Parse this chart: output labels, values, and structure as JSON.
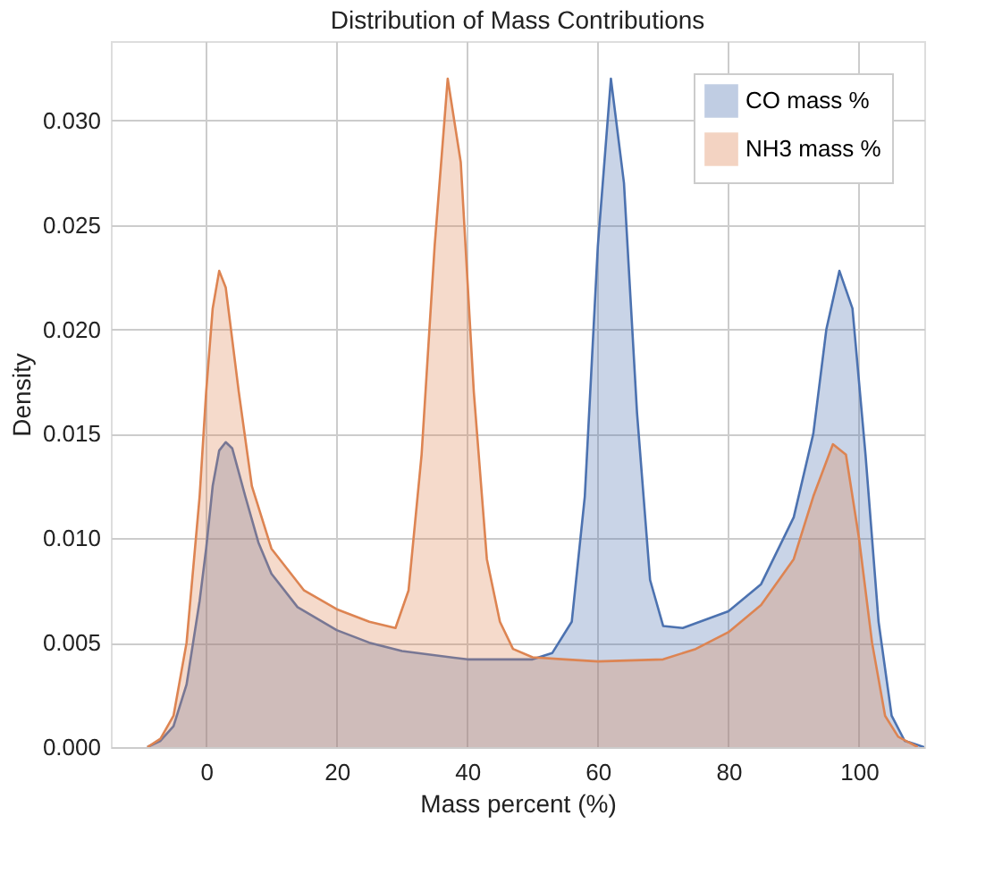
{
  "chart_data": {
    "type": "area",
    "title": "Distribution of Mass Contributions",
    "xlabel": "Mass percent (%)",
    "ylabel": "Density",
    "xlim": [
      -14.6,
      110
    ],
    "xticks": [
      0,
      20,
      40,
      60,
      80,
      100
    ],
    "ylim": [
      0,
      0.0338
    ],
    "yticks": [
      {
        "value": 0,
        "label": "0.000"
      },
      0.005,
      {
        "value": 0.01,
        "label": "0.010"
      },
      0.015,
      {
        "value": 0.02,
        "label": "0.020"
      },
      0.025,
      {
        "value": 0.03,
        "label": "0.030"
      }
    ],
    "grid": true,
    "legend": "top right",
    "series": [
      {
        "name": "CO mass %",
        "color": "#4c72b0",
        "x": [
          -9,
          -7,
          -5,
          -3,
          -1,
          0,
          1,
          2,
          3,
          4,
          6,
          8,
          10,
          14,
          20,
          25,
          30,
          40,
          50,
          53,
          56,
          58,
          60,
          62,
          64,
          66,
          68,
          70,
          73,
          80,
          85,
          90,
          93,
          95,
          97,
          99,
          101,
          103,
          105,
          107,
          110
        ],
        "values": [
          0,
          0.0003,
          0.001,
          0.003,
          0.007,
          0.0095,
          0.0125,
          0.0142,
          0.0146,
          0.0143,
          0.012,
          0.0098,
          0.0083,
          0.0067,
          0.0056,
          0.005,
          0.0046,
          0.0042,
          0.0042,
          0.0045,
          0.006,
          0.012,
          0.024,
          0.032,
          0.027,
          0.016,
          0.008,
          0.0058,
          0.0057,
          0.0065,
          0.0078,
          0.011,
          0.015,
          0.02,
          0.0228,
          0.021,
          0.014,
          0.006,
          0.0015,
          0.0003,
          0
        ]
      },
      {
        "name": "NH3 mass %",
        "color": "#dd8452",
        "x": [
          -9,
          -7,
          -5,
          -3,
          -1,
          0,
          1,
          2,
          3,
          5,
          7,
          10,
          15,
          20,
          25,
          29,
          31,
          33,
          35,
          37,
          39,
          41,
          43,
          45,
          47,
          50,
          55,
          60,
          70,
          75,
          80,
          85,
          90,
          93,
          96,
          98,
          100,
          102,
          104,
          106,
          109
        ],
        "values": [
          0,
          0.0004,
          0.0015,
          0.005,
          0.012,
          0.017,
          0.021,
          0.0228,
          0.022,
          0.017,
          0.0125,
          0.0095,
          0.0075,
          0.0066,
          0.006,
          0.0057,
          0.0075,
          0.014,
          0.024,
          0.032,
          0.028,
          0.017,
          0.009,
          0.006,
          0.0047,
          0.0043,
          0.0042,
          0.0041,
          0.0042,
          0.0047,
          0.0055,
          0.0068,
          0.009,
          0.012,
          0.0145,
          0.014,
          0.01,
          0.005,
          0.0015,
          0.0005,
          0
        ]
      }
    ]
  }
}
